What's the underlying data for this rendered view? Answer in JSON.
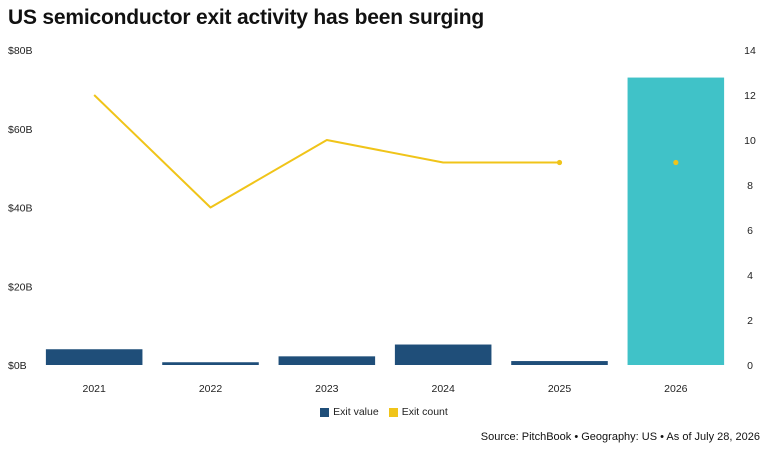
{
  "title": "US semiconductor exit activity has been surging",
  "source": "Source: PitchBook • Geography: US • As of July 28, 2026",
  "colors": {
    "exit_value": "#1f4e79",
    "exit_value_highlight": "#40c2c8",
    "exit_count": "#f0c419",
    "text": "#222222"
  },
  "chart_data": {
    "type": "bar",
    "categories": [
      "2021",
      "2022",
      "2023",
      "2024",
      "2025",
      "2026"
    ],
    "series": [
      {
        "name": "Exit value",
        "axis": "left",
        "type": "bar",
        "values": [
          4.0,
          0.7,
          2.2,
          5.2,
          1.0,
          73.0
        ],
        "highlight_index": 5
      },
      {
        "name": "Exit count",
        "axis": "right",
        "type": "line",
        "values": [
          12,
          7,
          10,
          9,
          9,
          9
        ],
        "connected_through_index": 4
      }
    ],
    "left_axis": {
      "ticks": [
        "$0B",
        "$20B",
        "$40B",
        "$60B",
        "$80B"
      ],
      "ylim": [
        0,
        80
      ]
    },
    "right_axis": {
      "ticks": [
        "0",
        "2",
        "4",
        "6",
        "8",
        "10",
        "12",
        "14"
      ],
      "ylim": [
        0,
        14
      ]
    },
    "grid": false,
    "legend_position": "bottom"
  }
}
